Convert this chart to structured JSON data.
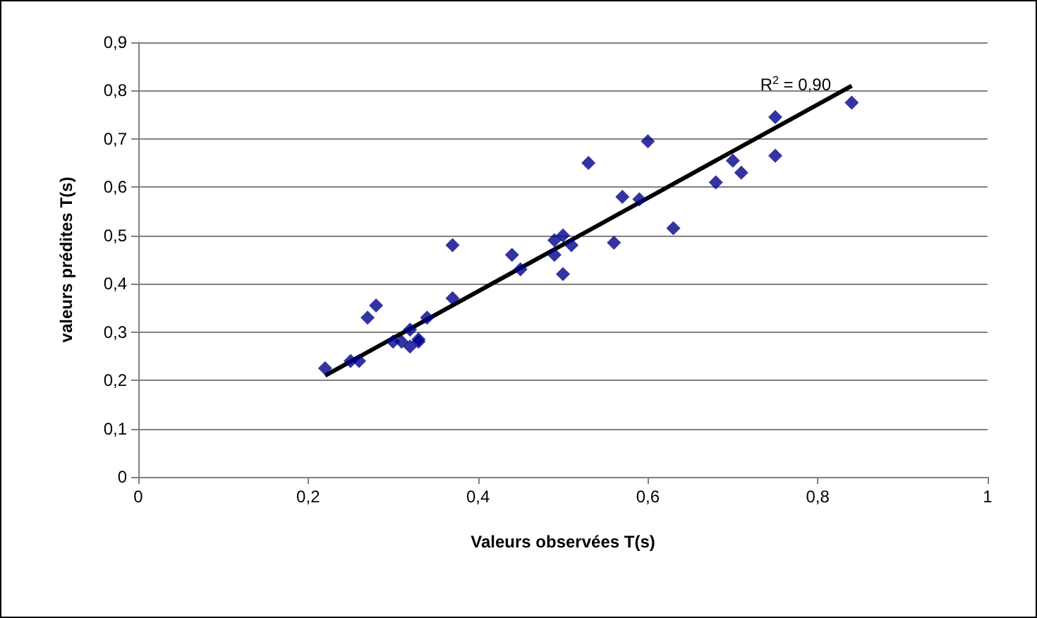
{
  "chart_data": {
    "type": "scatter",
    "xlabel": "Valeurs observées T(s)",
    "ylabel": "valeurs prédites T(s)",
    "annotations": [
      "R$^{2}$ = 0,90"
    ],
    "xlim": [
      0,
      1
    ],
    "ylim": [
      0,
      0.9
    ],
    "xticks": [
      0,
      {
        "value": 0.2,
        "label": "0,2"
      },
      {
        "value": 0.4,
        "label": "0,4"
      },
      {
        "value": 0.6,
        "label": "0,6"
      },
      {
        "value": 0.8,
        "label": "0,8"
      },
      1
    ],
    "yticks": [
      0,
      {
        "value": 0.1,
        "label": "0,1"
      },
      {
        "value": 0.2,
        "label": "0,2"
      },
      {
        "value": 0.3,
        "label": "0,3"
      },
      {
        "value": 0.4,
        "label": "0,4"
      },
      {
        "value": 0.5,
        "label": "0,5"
      },
      {
        "value": 0.6,
        "label": "0,6"
      },
      {
        "value": 0.7,
        "label": "0,7"
      },
      {
        "value": 0.8,
        "label": "0,8"
      },
      {
        "value": 0.9,
        "label": "0,9"
      }
    ],
    "grid": "y",
    "marker": "diamond",
    "series": [
      {
        "color": "#00008b",
        "x": [
          0.22,
          0.25,
          0.26,
          0.27,
          0.28,
          0.3,
          0.31,
          0.32,
          0.32,
          0.33,
          0.33,
          0.34,
          0.37,
          0.37,
          0.44,
          0.45,
          0.49,
          0.49,
          0.5,
          0.5,
          0.51,
          0.53,
          0.56,
          0.57,
          0.59,
          0.6,
          0.63,
          0.68,
          0.7,
          0.71,
          0.75,
          0.75,
          0.84
        ],
        "values": [
          0.225,
          0.24,
          0.24,
          0.33,
          0.355,
          0.28,
          0.28,
          0.27,
          0.305,
          0.28,
          0.285,
          0.33,
          0.37,
          0.48,
          0.46,
          0.43,
          0.46,
          0.49,
          0.5,
          0.42,
          0.48,
          0.65,
          0.485,
          0.58,
          0.575,
          0.695,
          0.515,
          0.61,
          0.655,
          0.63,
          0.745,
          0.665,
          0.775
        ]
      },
      {
        "type": "line",
        "color": "#000000",
        "x": [
          0.22,
          0.84
        ],
        "values": [
          0.21,
          0.81
        ],
        "marker": "none",
        "line_style": "solid"
      }
    ]
  }
}
